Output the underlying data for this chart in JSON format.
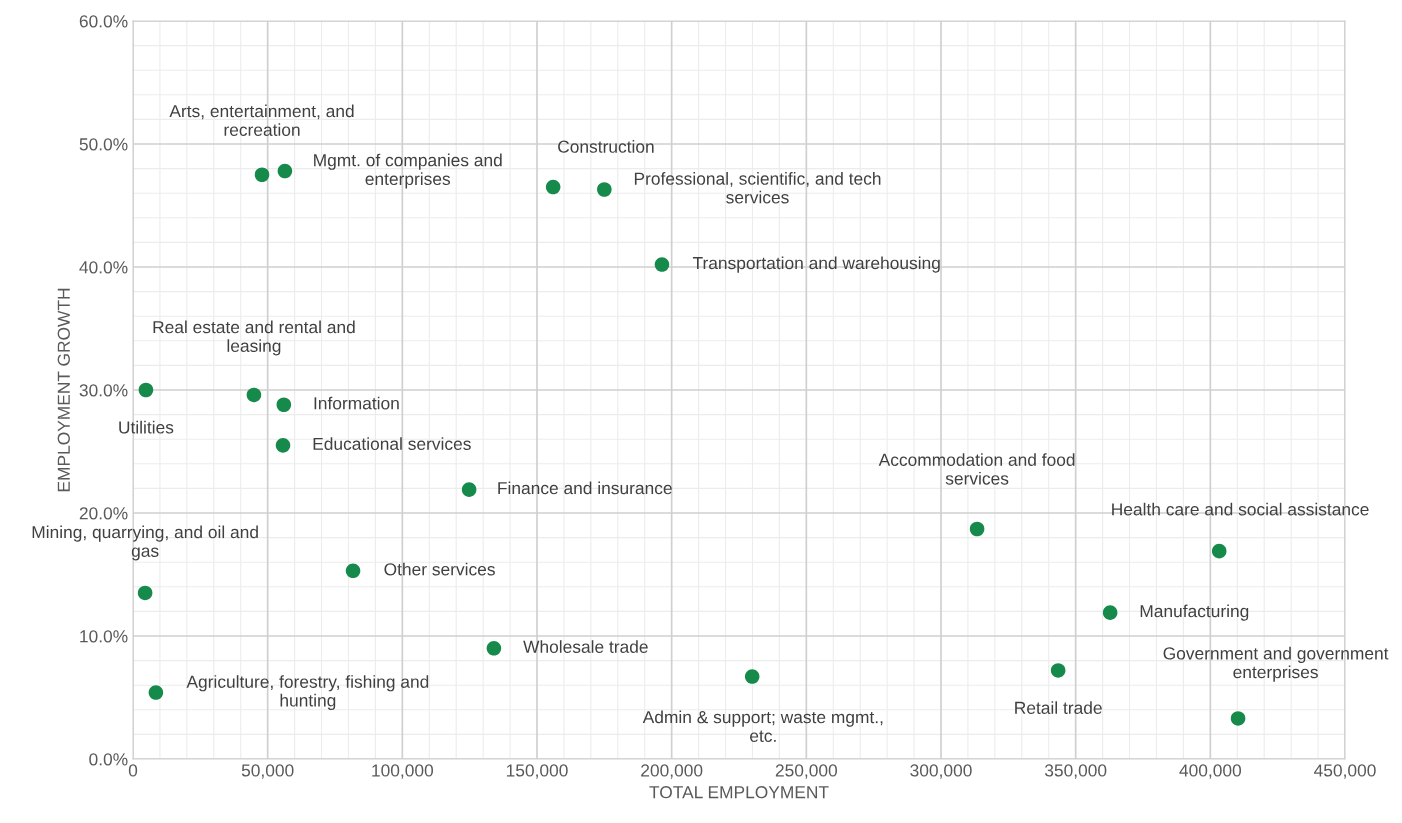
{
  "chart_data": {
    "type": "scatter",
    "xlabel": "TOTAL EMPLOYMENT",
    "ylabel": "EMPLOYMENT GROWTH",
    "x": [
      47900,
      56400,
      156000,
      175000,
      196400,
      4800,
      44900,
      56000,
      55700,
      124800,
      313400,
      403300,
      81700,
      4500,
      362800,
      134000,
      229900,
      343500,
      8500,
      410300
    ],
    "series": [
      {
        "color": "#168a4b",
        "values": [
          47.5,
          47.8,
          46.5,
          46.3,
          40.2,
          30.0,
          29.6,
          28.8,
          25.5,
          21.9,
          18.7,
          16.9,
          15.3,
          13.5,
          11.9,
          9.0,
          6.7,
          7.2,
          5.4,
          3.3
        ]
      }
    ],
    "annotations": [
      {
        "text": "Arts, entertainment, and\nrecreation",
        "x": 47900,
        "y": 47.5
      },
      {
        "text": "Mgmt. of companies and\nenterprises",
        "x": 56400,
        "y": 47.8
      },
      {
        "text": "Construction",
        "x": 156000,
        "y": 46.5
      },
      {
        "text": "Professional, scientific, and tech\nservices",
        "x": 175000,
        "y": 46.3
      },
      {
        "text": "Transportation and warehousing",
        "x": 196400,
        "y": 40.2
      },
      {
        "text": "Utilities",
        "x": 4800,
        "y": 30.0
      },
      {
        "text": "Real estate and rental and\nleasing",
        "x": 44900,
        "y": 29.6
      },
      {
        "text": "Information",
        "x": 56000,
        "y": 28.8
      },
      {
        "text": "Educational services",
        "x": 55700,
        "y": 25.5
      },
      {
        "text": "Finance and insurance",
        "x": 124800,
        "y": 21.9
      },
      {
        "text": "Accommodation and food\nservices",
        "x": 313400,
        "y": 18.7
      },
      {
        "text": "Health care and social assistance",
        "x": 403300,
        "y": 16.9
      },
      {
        "text": "Other services",
        "x": 81700,
        "y": 15.3
      },
      {
        "text": "Mining, quarrying, and oil and\ngas",
        "x": 4500,
        "y": 13.5
      },
      {
        "text": "Manufacturing",
        "x": 362800,
        "y": 11.9
      },
      {
        "text": "Wholesale trade",
        "x": 134000,
        "y": 9.0
      },
      {
        "text": "Admin & support; waste mgmt.,\netc.",
        "x": 229900,
        "y": 6.7
      },
      {
        "text": "Retail trade",
        "x": 343500,
        "y": 7.2
      },
      {
        "text": "Agriculture, forestry, fishing and\nhunting",
        "x": 8500,
        "y": 5.4
      },
      {
        "text": "Government and government\nenterprises",
        "x": 410300,
        "y": 3.3
      }
    ],
    "xlim": [
      0,
      450000
    ],
    "xticks": [
      0,
      {
        "value": 50000,
        "label": "50,000"
      },
      {
        "value": 100000,
        "label": "100,000"
      },
      {
        "value": 150000,
        "label": "150,000"
      },
      {
        "value": 200000,
        "label": "200,000"
      },
      {
        "value": 250000,
        "label": "250,000"
      },
      {
        "value": 300000,
        "label": "300,000"
      },
      {
        "value": 350000,
        "label": "350,000"
      },
      {
        "value": 400000,
        "label": "400,000"
      },
      {
        "value": 450000,
        "label": "450,000"
      }
    ],
    "ylim": [
      0,
      60
    ],
    "yticks": [
      {
        "value": 0,
        "label": "0.0%"
      },
      {
        "value": 10,
        "label": "10.0%"
      },
      {
        "value": 20,
        "label": "20.0%"
      },
      {
        "value": 30,
        "label": "30.0%"
      },
      {
        "value": 40,
        "label": "40.0%"
      },
      {
        "value": 50,
        "label": "50.0%"
      },
      {
        "value": 60,
        "label": "60.0%"
      }
    ],
    "grid": true,
    "marker": "circle",
    "legend": false
  }
}
